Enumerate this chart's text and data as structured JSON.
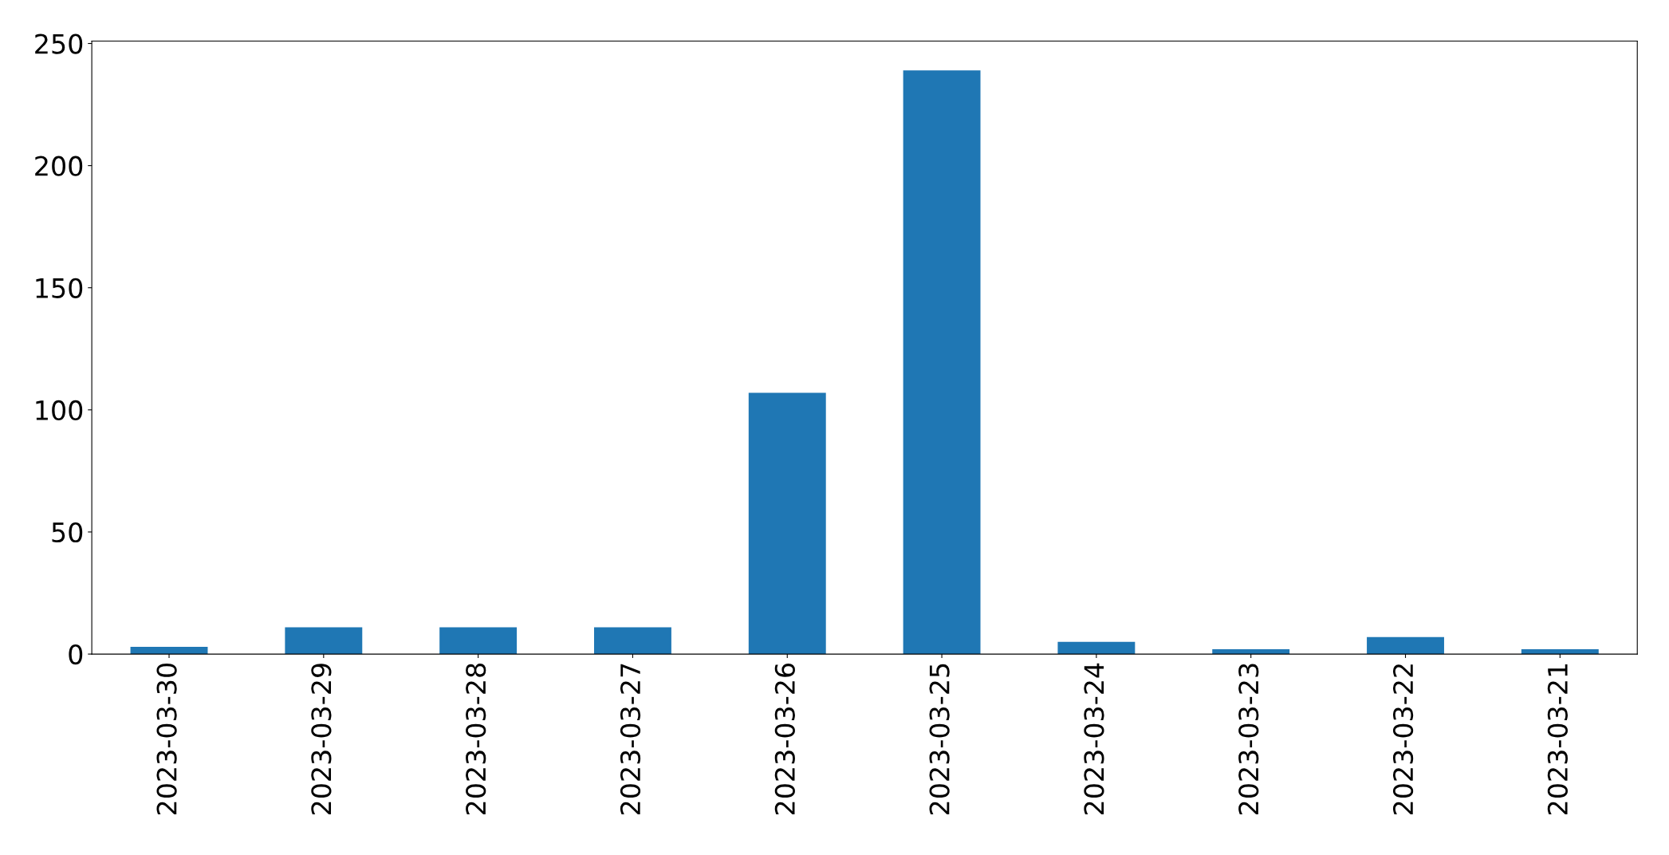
{
  "chart_data": {
    "type": "bar",
    "categories": [
      "2023-03-30",
      "2023-03-29",
      "2023-03-28",
      "2023-03-27",
      "2023-03-26",
      "2023-03-25",
      "2023-03-24",
      "2023-03-23",
      "2023-03-22",
      "2023-03-21"
    ],
    "values": [
      3,
      11,
      11,
      11,
      107,
      239,
      5,
      2,
      7,
      2
    ],
    "color": "#1f77b4",
    "ylim": [
      0,
      251
    ],
    "yticks": [
      0,
      50,
      100,
      150,
      200,
      250
    ],
    "grid": false
  }
}
